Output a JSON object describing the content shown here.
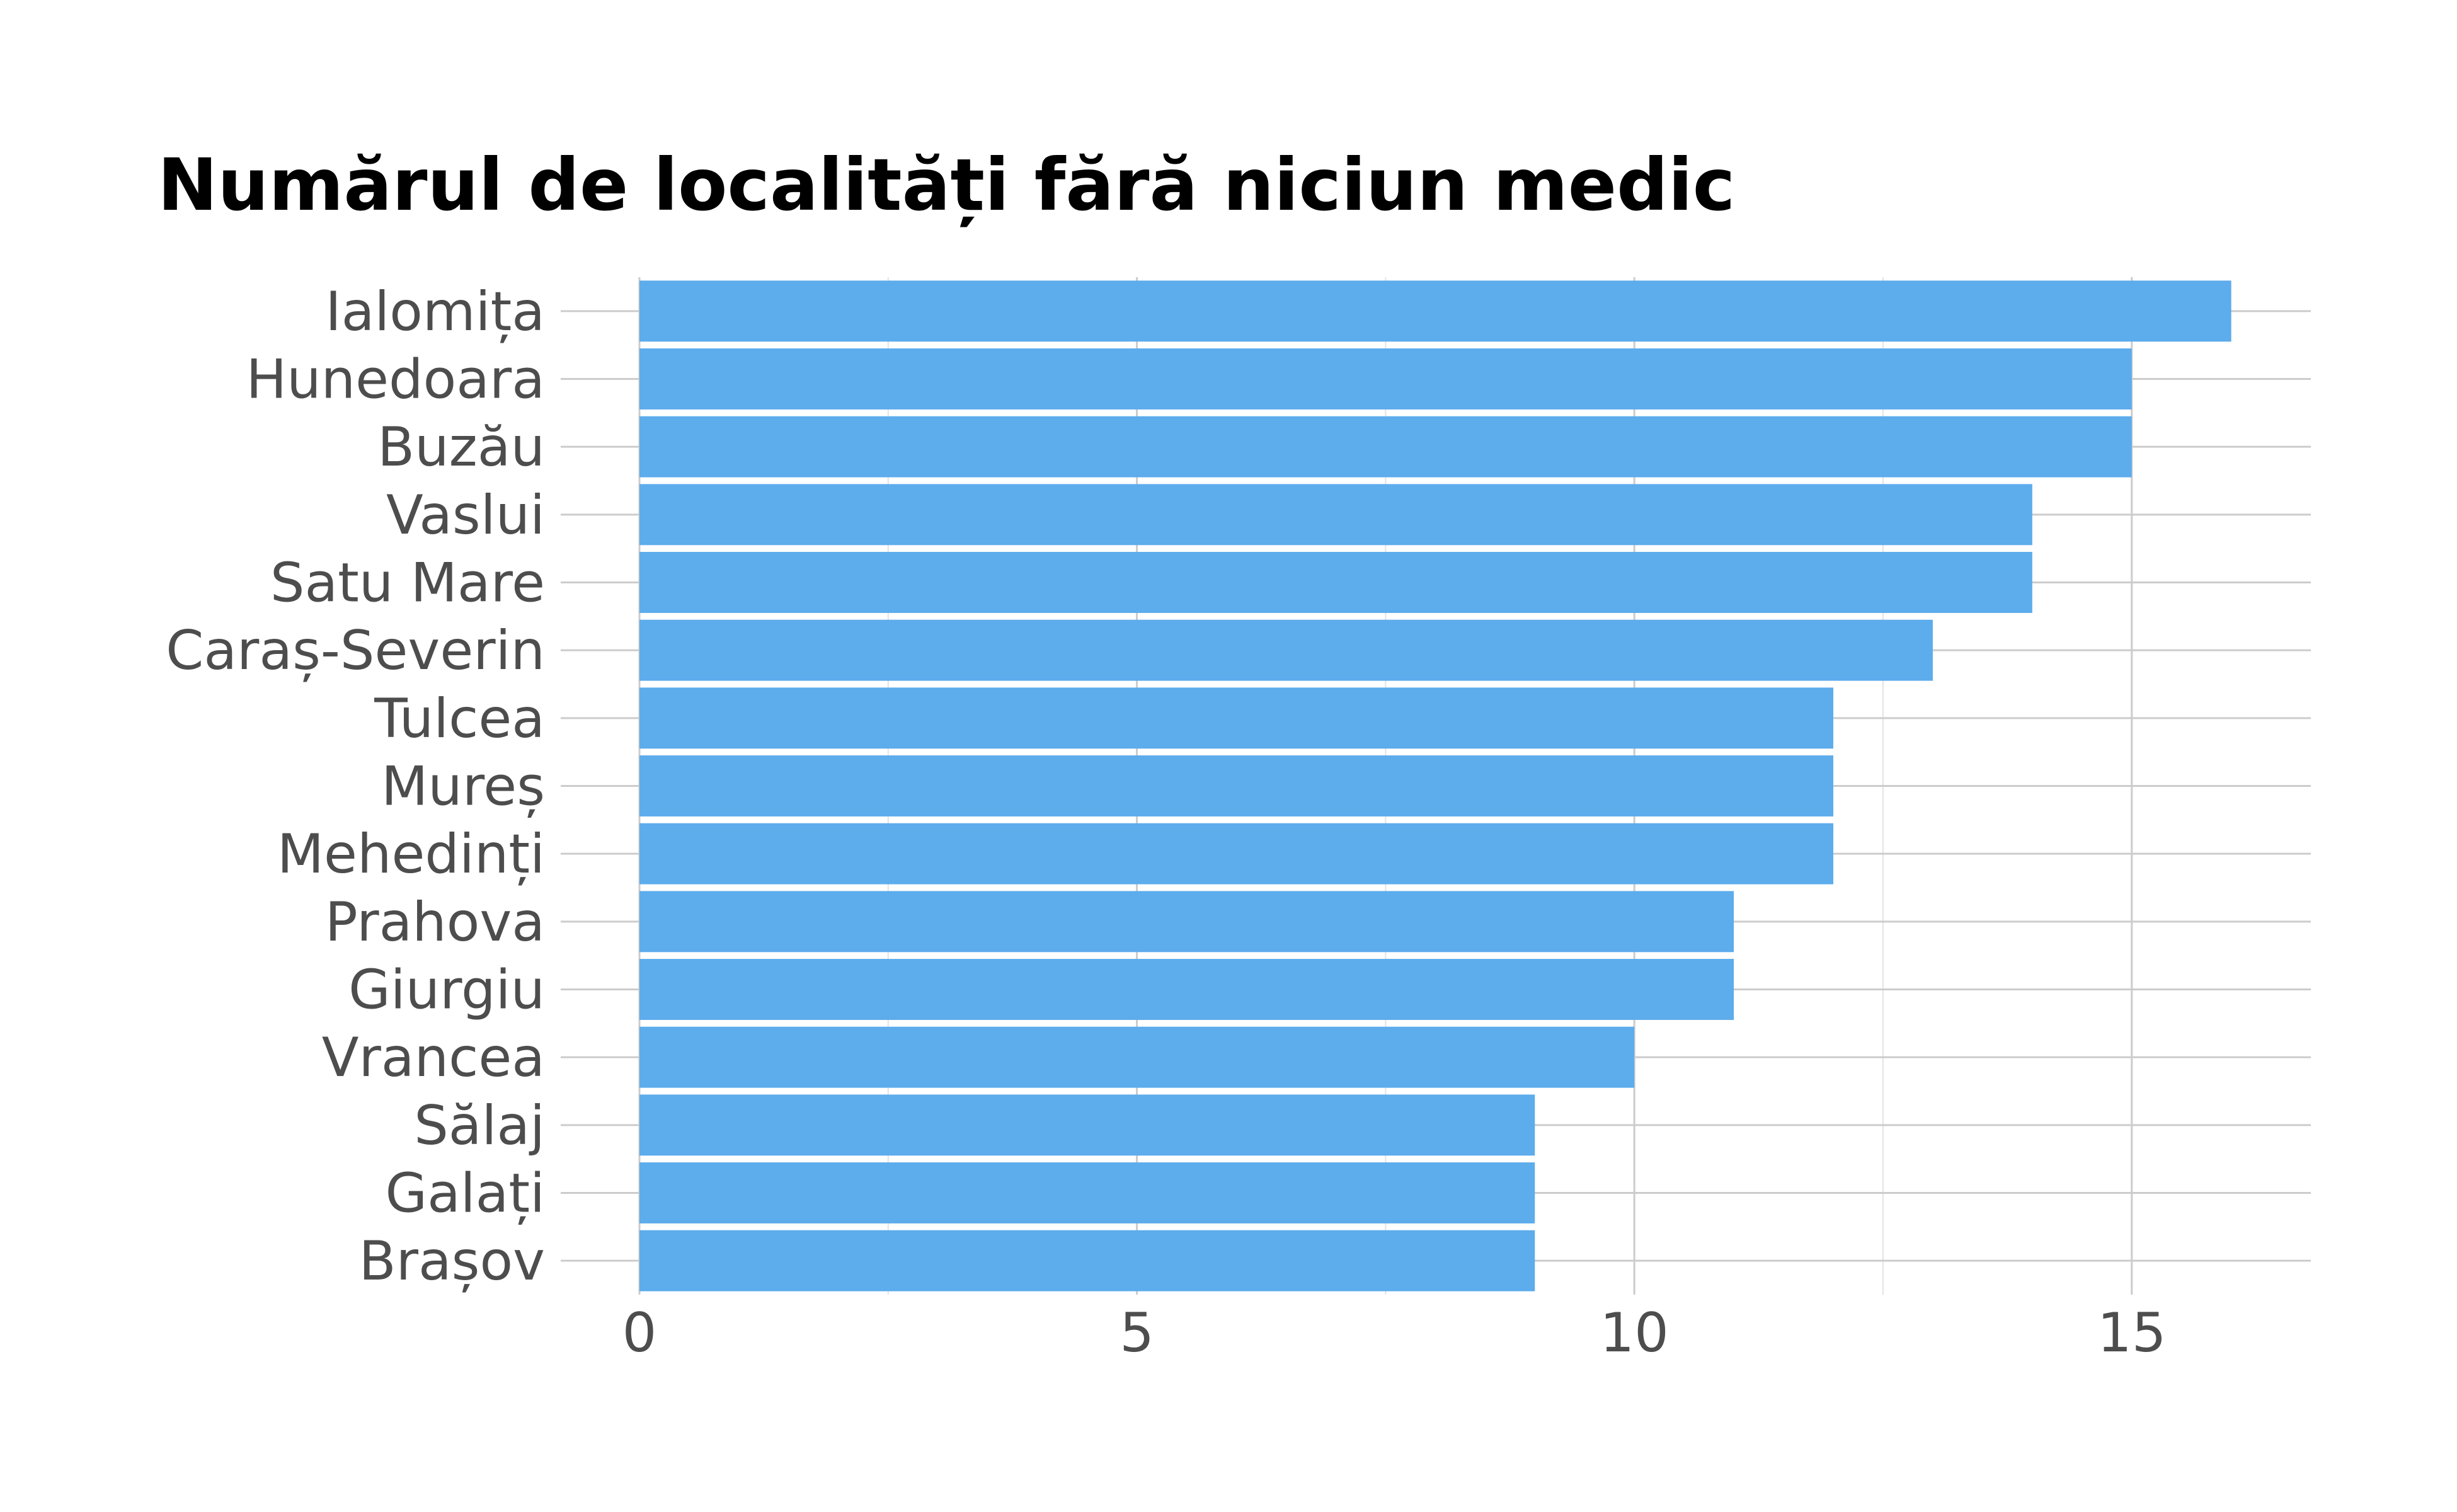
{
  "chart_data": {
    "type": "bar",
    "orientation": "horizontal",
    "title": "Numărul de localități fără niciun medic",
    "xlabel": "",
    "ylabel": "",
    "categories": [
      "Ialomița",
      "Hunedoara",
      "Buzău",
      "Vaslui",
      "Satu Mare",
      "Caraș-Severin",
      "Tulcea",
      "Mureș",
      "Mehedinți",
      "Prahova",
      "Giurgiu",
      "Vrancea",
      "Sălaj",
      "Galați",
      "Brașov"
    ],
    "values": [
      16,
      15,
      15,
      14,
      14,
      13,
      12,
      12,
      12,
      11,
      11,
      10,
      9,
      9,
      9
    ],
    "xlim": [
      0,
      16.8
    ],
    "xticks": [
      0,
      5,
      10,
      15
    ],
    "grid": true,
    "legend": "none",
    "colors": {
      "bar": "#5dacec",
      "text": "#4d4d4d",
      "title": "#000000",
      "grid": "#cccccc"
    }
  }
}
